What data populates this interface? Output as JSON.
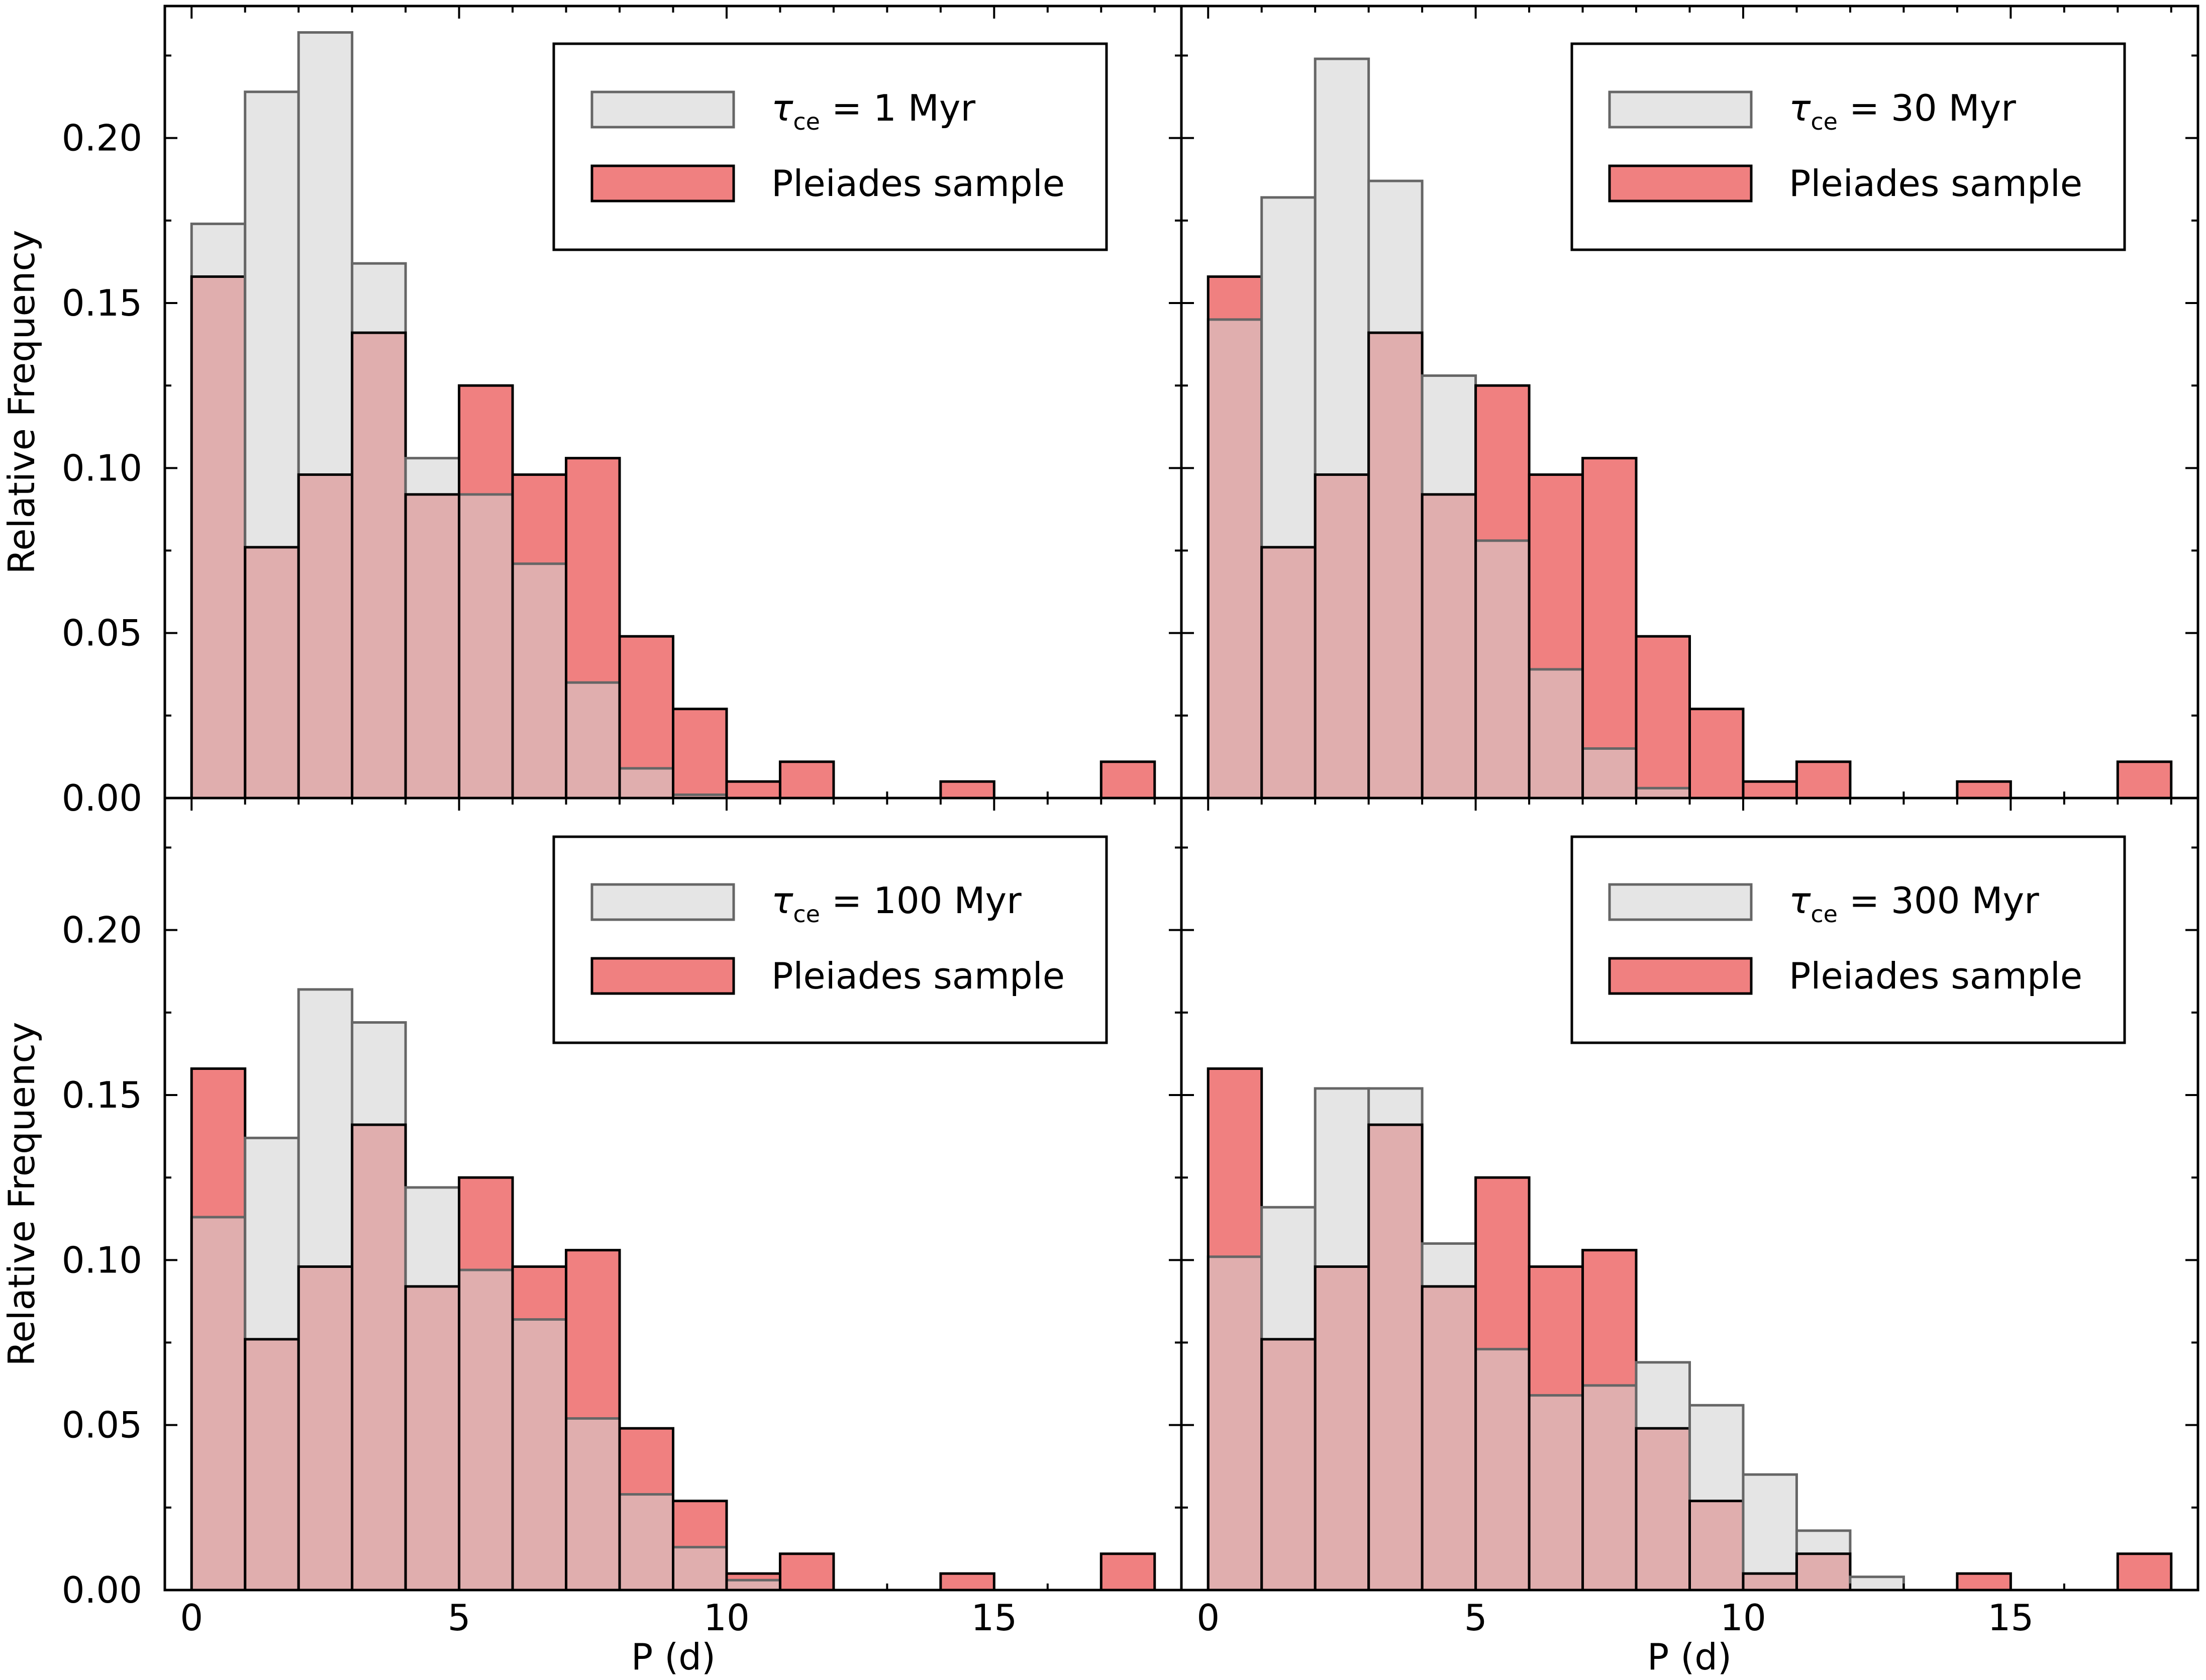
{
  "figure": {
    "ylabel": "Relative Frequency",
    "xlabel": "P (d)",
    "x_tick_labels": [
      "0",
      "5",
      "10",
      "15"
    ],
    "y_tick_labels": [
      "0.00",
      "0.05",
      "0.10",
      "0.15",
      "0.20"
    ],
    "colors": {
      "model_fill": "#e5e5e5",
      "model_edge": "#666666",
      "sample_fill": "#f08080",
      "sample_edge": "#000000",
      "overlap_fill": "#e0aeae"
    }
  },
  "chart_data": [
    {
      "type": "bar",
      "panel": "top-left",
      "legend": {
        "model_label": "τ",
        "model_subscript": "ce",
        "model_value": " = 1 Myr",
        "sample_label": "Pleiades sample",
        "placement": "top-right"
      },
      "bin_edges": [
        0,
        1,
        2,
        3,
        4,
        5,
        6,
        7,
        8,
        9,
        10,
        11,
        12,
        13,
        14,
        15,
        16,
        17,
        18
      ],
      "series": [
        {
          "name": "τce = 1 Myr",
          "values": [
            0.174,
            0.214,
            0.232,
            0.162,
            0.103,
            0.092,
            0.071,
            0.035,
            0.009,
            0.001,
            0,
            0,
            0,
            0,
            0,
            0,
            0,
            0
          ]
        },
        {
          "name": "Pleiades sample",
          "values": [
            0.158,
            0.076,
            0.098,
            0.141,
            0.092,
            0.125,
            0.098,
            0.103,
            0.049,
            0.027,
            0.005,
            0.011,
            0,
            0,
            0.005,
            0,
            0,
            0.011
          ]
        }
      ],
      "xlim": [
        -0.5,
        18.5
      ],
      "ylim": [
        0,
        0.24
      ],
      "xlabel": "",
      "ylabel": "Relative Frequency"
    },
    {
      "type": "bar",
      "panel": "top-right",
      "legend": {
        "model_label": "τ",
        "model_subscript": "ce",
        "model_value": " = 30 Myr",
        "sample_label": "Pleiades sample",
        "placement": "top-right"
      },
      "bin_edges": [
        0,
        1,
        2,
        3,
        4,
        5,
        6,
        7,
        8,
        9,
        10,
        11,
        12,
        13,
        14,
        15,
        16,
        17,
        18
      ],
      "series": [
        {
          "name": "τce = 30 Myr",
          "values": [
            0.145,
            0.182,
            0.224,
            0.187,
            0.128,
            0.078,
            0.039,
            0.015,
            0.003,
            0,
            0,
            0,
            0,
            0,
            0,
            0,
            0,
            0
          ]
        },
        {
          "name": "Pleiades sample",
          "values": [
            0.158,
            0.076,
            0.098,
            0.141,
            0.092,
            0.125,
            0.098,
            0.103,
            0.049,
            0.027,
            0.005,
            0.011,
            0,
            0,
            0.005,
            0,
            0,
            0.011
          ]
        }
      ],
      "xlim": [
        -0.5,
        18.5
      ],
      "ylim": [
        0,
        0.24
      ],
      "xlabel": "",
      "ylabel": ""
    },
    {
      "type": "bar",
      "panel": "bottom-left",
      "legend": {
        "model_label": "τ",
        "model_subscript": "ce",
        "model_value": " = 100 Myr",
        "sample_label": "Pleiades sample",
        "placement": "top-right"
      },
      "bin_edges": [
        0,
        1,
        2,
        3,
        4,
        5,
        6,
        7,
        8,
        9,
        10,
        11,
        12,
        13,
        14,
        15,
        16,
        17,
        18
      ],
      "series": [
        {
          "name": "τce = 100 Myr",
          "values": [
            0.113,
            0.137,
            0.182,
            0.172,
            0.122,
            0.097,
            0.082,
            0.052,
            0.029,
            0.013,
            0.003,
            0,
            0,
            0,
            0,
            0,
            0,
            0
          ]
        },
        {
          "name": "Pleiades sample",
          "values": [
            0.158,
            0.076,
            0.098,
            0.141,
            0.092,
            0.125,
            0.098,
            0.103,
            0.049,
            0.027,
            0.005,
            0.011,
            0,
            0,
            0.005,
            0,
            0,
            0.011
          ]
        }
      ],
      "xlim": [
        -0.5,
        18.5
      ],
      "ylim": [
        0,
        0.24
      ],
      "xlabel": "P (d)",
      "ylabel": "Relative Frequency"
    },
    {
      "type": "bar",
      "panel": "bottom-right",
      "legend": {
        "model_label": "τ",
        "model_subscript": "ce",
        "model_value": " = 300 Myr",
        "sample_label": "Pleiades sample",
        "placement": "top-right"
      },
      "bin_edges": [
        0,
        1,
        2,
        3,
        4,
        5,
        6,
        7,
        8,
        9,
        10,
        11,
        12,
        13,
        14,
        15,
        16,
        17,
        18
      ],
      "series": [
        {
          "name": "τce = 300 Myr",
          "values": [
            0.101,
            0.116,
            0.152,
            0.152,
            0.105,
            0.073,
            0.059,
            0.062,
            0.069,
            0.056,
            0.035,
            0.018,
            0.004,
            0,
            0,
            0,
            0,
            0
          ]
        },
        {
          "name": "Pleiades sample",
          "values": [
            0.158,
            0.076,
            0.098,
            0.141,
            0.092,
            0.125,
            0.098,
            0.103,
            0.049,
            0.027,
            0.005,
            0.011,
            0,
            0,
            0.005,
            0,
            0,
            0.011
          ]
        }
      ],
      "xlim": [
        -0.5,
        18.5
      ],
      "ylim": [
        0,
        0.24
      ],
      "xlabel": "P (d)",
      "ylabel": ""
    }
  ]
}
